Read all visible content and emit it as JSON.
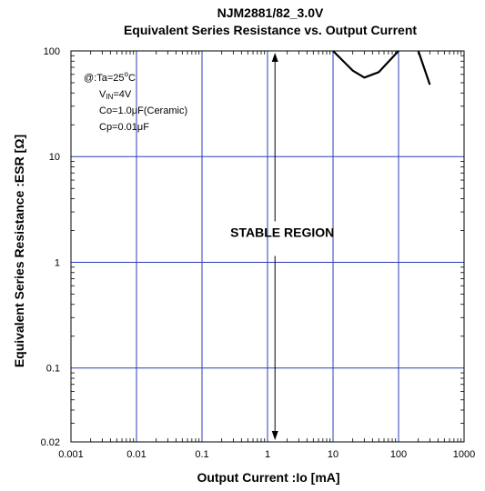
{
  "chart_data": {
    "type": "line",
    "title": "NJM2881/82_3.0V",
    "subtitle": "Equivalent Series Resistance vs. Output Current",
    "xlabel": "Output Current :Io [mA]",
    "ylabel": "Equivalent Series Resistance :ESR [Ω]",
    "x_scale": "log",
    "y_scale": "log",
    "xlim": [
      0.001,
      1000
    ],
    "ylim": [
      0.02,
      100
    ],
    "x_ticks": [
      {
        "value": 0.001,
        "label": "0.001"
      },
      {
        "value": 0.01,
        "label": "0.01"
      },
      {
        "value": 0.1,
        "label": "0.1"
      },
      {
        "value": 1,
        "label": "1"
      },
      {
        "value": 10,
        "label": "10"
      },
      {
        "value": 100,
        "label": "100"
      },
      {
        "value": 1000,
        "label": "1000"
      }
    ],
    "y_ticks": [
      {
        "value": 0.02,
        "label": "0.02"
      },
      {
        "value": 0.1,
        "label": "0.1"
      },
      {
        "value": 1,
        "label": "1"
      },
      {
        "value": 10,
        "label": "10"
      },
      {
        "value": 100,
        "label": "100"
      }
    ],
    "grid": true,
    "conditions": [
      {
        "text": "@:Ta=25°C",
        "parts": [
          {
            "t": "@:Ta=25"
          },
          {
            "t": "o",
            "sup": true
          },
          {
            "t": "C"
          }
        ]
      },
      {
        "text": "VIN=4V",
        "parts": [
          {
            "t": "V"
          },
          {
            "t": "IN",
            "sub": true
          },
          {
            "t": "=4V"
          }
        ]
      },
      {
        "text": "Co=1.0μF(Ceramic)",
        "parts": [
          {
            "t": "Co=1.0μF(Ceramic)"
          }
        ]
      },
      {
        "text": "Cp=0.01μF",
        "parts": [
          {
            "t": "Cp=0.01μF"
          }
        ]
      }
    ],
    "annotation": {
      "text": "STABLE REGION",
      "x": 1.3,
      "y": 1.4,
      "arrow_x": 1.3,
      "arrow_from": 1.4,
      "arrow_to_top": 100,
      "arrow_to_bottom": 0.02
    },
    "series": [
      {
        "points": [
          [
            10,
            100
          ],
          [
            20,
            65
          ],
          [
            30,
            56
          ],
          [
            50,
            63
          ],
          [
            100,
            100
          ]
        ]
      },
      {
        "points": [
          [
            200,
            100
          ],
          [
            300,
            48
          ]
        ]
      }
    ]
  }
}
